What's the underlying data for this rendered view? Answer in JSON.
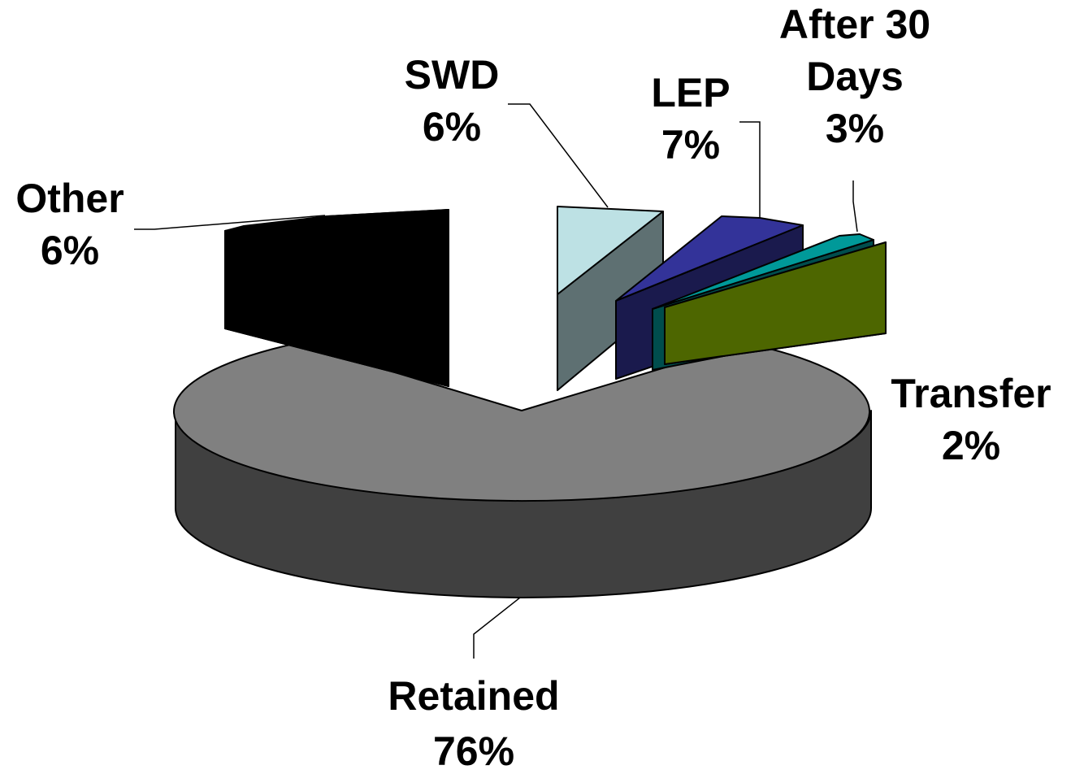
{
  "chart_data": {
    "type": "pie",
    "title": "",
    "three_d": true,
    "exploded": true,
    "slices": [
      {
        "label": "Retained",
        "value": 76,
        "value_label": "76%",
        "color": "#808080",
        "side_color": "#404040"
      },
      {
        "label": "Other",
        "value": 6,
        "value_label": "6%",
        "color": "#000000",
        "side_color": "#000000"
      },
      {
        "label": "SWD",
        "value": 6,
        "value_label": "6%",
        "color": "#BDE1E4",
        "side_color": "#5E7072"
      },
      {
        "label": "LEP",
        "value": 7,
        "value_label": "7%",
        "color": "#333399",
        "side_color": "#1A1A4D"
      },
      {
        "label": "After 30 Days",
        "label_lines": [
          "After 30",
          "Days"
        ],
        "value": 3,
        "value_label": "3%",
        "color": "#009999",
        "side_color": "#004D4D"
      },
      {
        "label": "Transfer",
        "value": 2,
        "value_label": "2%",
        "color": "#4D6600",
        "side_color": "#263300"
      }
    ],
    "legend": "none"
  }
}
